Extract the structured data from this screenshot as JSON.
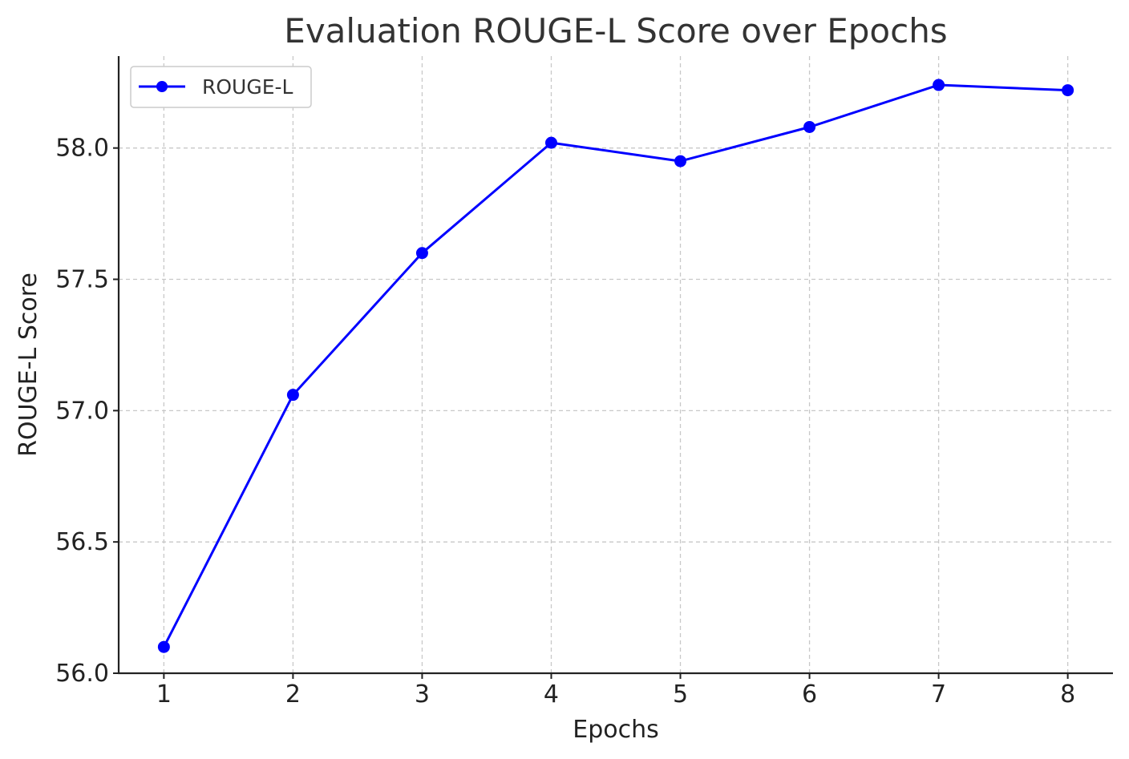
{
  "chart_data": {
    "type": "line",
    "title": "Evaluation ROUGE-L Score over Epochs",
    "xlabel": "Epochs",
    "ylabel": "ROUGE-L Score",
    "x": [
      1,
      2,
      3,
      4,
      5,
      6,
      7,
      8
    ],
    "series": [
      {
        "name": "ROUGE-L",
        "values": [
          56.1,
          57.06,
          57.6,
          58.02,
          57.95,
          58.08,
          58.24,
          58.22
        ],
        "color": "#0000ff",
        "marker": "circle"
      }
    ],
    "xlim": [
      0.65,
      8.35
    ],
    "ylim": [
      56.0,
      58.35
    ],
    "xticks": [
      "1",
      "2",
      "3",
      "4",
      "5",
      "6",
      "7",
      "8"
    ],
    "yticks": [
      "56.0",
      "56.5",
      "57.0",
      "57.5",
      "58.0"
    ],
    "grid": true,
    "legend_position": "top-left"
  }
}
